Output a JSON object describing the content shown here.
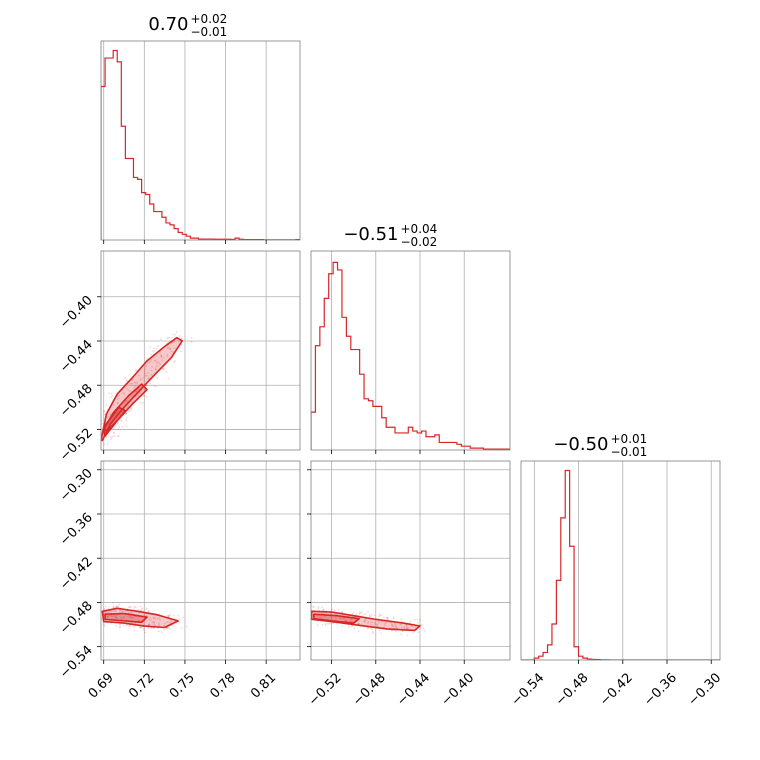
{
  "figure": {
    "type": "corner-plot",
    "accent_color": "#d62728",
    "grid": true
  },
  "chart_data": [
    {
      "type": "histogram",
      "panel": "diag-0",
      "title": {
        "main": "0.70",
        "sup": "+0.02",
        "sub": "−0.01"
      },
      "xlim": [
        0.688,
        0.835
      ],
      "ylim": [
        0,
        1.05
      ],
      "xticks": [
        0.69,
        0.72,
        0.75,
        0.78,
        0.81
      ],
      "xticklabels": [
        "0.69",
        "0.72",
        "0.75",
        "0.78",
        "0.81"
      ],
      "bin_edges": [
        0.688,
        0.691,
        0.694,
        0.697,
        0.7,
        0.703,
        0.706,
        0.709,
        0.712,
        0.715,
        0.718,
        0.721,
        0.724,
        0.727,
        0.73,
        0.733,
        0.736,
        0.739,
        0.742,
        0.745,
        0.748,
        0.751,
        0.754,
        0.757,
        0.76,
        0.763,
        0.766,
        0.769,
        0.772,
        0.775,
        0.778,
        0.781,
        0.784,
        0.787,
        0.79,
        0.793,
        0.796,
        0.799,
        0.802,
        0.805,
        0.808,
        0.811,
        0.814,
        0.817,
        0.82,
        0.823,
        0.826,
        0.829,
        0.832,
        0.835
      ],
      "counts": [
        0.81,
        0.96,
        0.96,
        1.0,
        0.94,
        0.6,
        0.43,
        0.43,
        0.33,
        0.32,
        0.25,
        0.24,
        0.19,
        0.15,
        0.15,
        0.12,
        0.09,
        0.08,
        0.06,
        0.04,
        0.03,
        0.02,
        0.01,
        0.01,
        0.005,
        0.005,
        0.005,
        0.005,
        0.004,
        0.004,
        0.004,
        0.004,
        0.003,
        0.01,
        0.004,
        0.002,
        0.002,
        0.002,
        0.002,
        0.002,
        0.001,
        0.001,
        0.001,
        0.001,
        0.001,
        0.001,
        0.001,
        0.001,
        0.002
      ]
    },
    {
      "type": "histogram",
      "panel": "diag-1",
      "title": {
        "main": "−0.51",
        "sup": "+0.04",
        "sub": "−0.02"
      },
      "xlim": [
        -0.5386,
        -0.3586
      ],
      "ylim": [
        0,
        1.05
      ],
      "xticks": [
        -0.52,
        -0.48,
        -0.44,
        -0.4
      ],
      "xticklabels": [
        "−0.52",
        "−0.48",
        "−0.44",
        "−0.40"
      ],
      "bin_edges": [
        -0.5386,
        -0.5346,
        -0.5306,
        -0.5266,
        -0.5226,
        -0.5186,
        -0.5146,
        -0.5106,
        -0.5066,
        -0.5026,
        -0.4986,
        -0.4946,
        -0.4906,
        -0.4866,
        -0.4826,
        -0.4786,
        -0.4746,
        -0.4706,
        -0.4666,
        -0.4626,
        -0.4586,
        -0.4546,
        -0.4506,
        -0.4466,
        -0.4426,
        -0.4386,
        -0.4346,
        -0.4306,
        -0.4266,
        -0.4226,
        -0.4186,
        -0.4146,
        -0.4106,
        -0.4066,
        -0.4026,
        -0.3986,
        -0.3946,
        -0.3906,
        -0.3866,
        -0.3826,
        -0.3786,
        -0.3746,
        -0.3706,
        -0.3666,
        -0.3626,
        -0.3586
      ],
      "counts": [
        0.2,
        0.55,
        0.65,
        0.8,
        0.93,
        0.99,
        0.95,
        0.7,
        0.6,
        0.53,
        0.53,
        0.4,
        0.27,
        0.26,
        0.23,
        0.23,
        0.17,
        0.12,
        0.12,
        0.09,
        0.09,
        0.09,
        0.12,
        0.1,
        0.09,
        0.1,
        0.07,
        0.07,
        0.08,
        0.04,
        0.04,
        0.04,
        0.04,
        0.03,
        0.02,
        0.02,
        0.01,
        0.01,
        0.01,
        0.005,
        0.005,
        0.005,
        0.005,
        0.005,
        0.005
      ]
    },
    {
      "type": "histogram",
      "panel": "diag-2",
      "title": {
        "main": "−0.50",
        "sup": "+0.01",
        "sub": "−0.01"
      },
      "xlim": [
        -0.5581,
        -0.2881
      ],
      "ylim": [
        0,
        1.05
      ],
      "xticks": [
        -0.54,
        -0.48,
        -0.42,
        -0.36,
        -0.3
      ],
      "xticklabels": [
        "−0.54",
        "−0.48",
        "−0.42",
        "−0.36",
        "−0.30"
      ],
      "bin_edges": [
        -0.5581,
        -0.5521,
        -0.5461,
        -0.5401,
        -0.5341,
        -0.5281,
        -0.5221,
        -0.5161,
        -0.5101,
        -0.5041,
        -0.4981,
        -0.4921,
        -0.4861,
        -0.4801,
        -0.4741,
        -0.4681,
        -0.4621,
        -0.4561,
        -0.4501,
        -0.4441,
        -0.4381,
        -0.4321,
        -0.4261,
        -0.4201,
        -0.4141,
        -0.4081,
        -0.4021,
        -0.3961,
        -0.3901,
        -0.3841,
        -0.3781,
        -0.3721,
        -0.3661,
        -0.3601,
        -0.3541,
        -0.3481,
        -0.3421,
        -0.3361,
        -0.3301,
        -0.3241,
        -0.3181,
        -0.3121,
        -0.3061,
        -0.3001,
        -0.2941,
        -0.2881
      ],
      "counts": [
        0.0,
        0.0,
        0.0,
        0.01,
        0.02,
        0.04,
        0.08,
        0.19,
        0.42,
        0.75,
        1.0,
        0.6,
        0.07,
        0.02,
        0.01,
        0.005,
        0.003,
        0.002,
        0.001,
        0.001,
        0.0,
        0.0,
        0.0,
        0.0,
        0.0,
        0.0,
        0.0,
        0.0,
        0.0,
        0.0,
        0.0,
        0.0,
        0.0,
        0.0,
        0.0,
        0.0,
        0.0,
        0.0,
        0.0,
        0.0,
        0.0,
        0.0,
        0.0,
        0.0,
        0.0
      ]
    },
    {
      "type": "scatter-contour",
      "panel": "p10",
      "xlim": [
        0.688,
        0.835
      ],
      "ylim": [
        -0.5386,
        -0.3586
      ],
      "yticks": [
        -0.4,
        -0.44,
        -0.48,
        -0.52
      ],
      "yticklabels": [
        "−0.40",
        "−0.44",
        "−0.48",
        "−0.52"
      ],
      "contours": [
        {
          "fill_opacity": 0.25,
          "points": [
            [
              0.689,
              -0.53
            ],
            [
              0.695,
              -0.515
            ],
            [
              0.705,
              -0.5
            ],
            [
              0.718,
              -0.483
            ],
            [
              0.728,
              -0.47
            ],
            [
              0.74,
              -0.455
            ],
            [
              0.748,
              -0.44
            ],
            [
              0.744,
              -0.437
            ],
            [
              0.735,
              -0.445
            ],
            [
              0.722,
              -0.458
            ],
            [
              0.712,
              -0.472
            ],
            [
              0.7,
              -0.488
            ],
            [
              0.692,
              -0.506
            ],
            [
              0.688,
              -0.53
            ]
          ]
        },
        {
          "fill_opacity": 0.35,
          "points": [
            [
              0.691,
              -0.526
            ],
            [
              0.7,
              -0.512
            ],
            [
              0.712,
              -0.496
            ],
            [
              0.722,
              -0.484
            ],
            [
              0.718,
              -0.479
            ],
            [
              0.708,
              -0.49
            ],
            [
              0.697,
              -0.505
            ],
            [
              0.69,
              -0.52
            ],
            [
              0.691,
              -0.526
            ]
          ]
        },
        {
          "fill_opacity": 0.45,
          "points": [
            [
              0.692,
              -0.522
            ],
            [
              0.7,
              -0.512
            ],
            [
              0.706,
              -0.503
            ],
            [
              0.701,
              -0.5
            ],
            [
              0.695,
              -0.51
            ],
            [
              0.69,
              -0.518
            ],
            [
              0.692,
              -0.522
            ]
          ]
        }
      ]
    },
    {
      "type": "scatter-contour",
      "panel": "p20",
      "xlim": [
        0.688,
        0.835
      ],
      "ylim": [
        -0.5581,
        -0.2881
      ],
      "yticks": [
        -0.3,
        -0.36,
        -0.42,
        -0.48,
        -0.54
      ],
      "yticklabels": [
        "−0.30",
        "−0.36",
        "−0.42",
        "−0.48",
        "−0.54"
      ],
      "xticks": [
        0.69,
        0.72,
        0.75,
        0.78,
        0.81
      ],
      "xticklabels": [
        "0.69",
        "0.72",
        "0.75",
        "0.78",
        "0.81"
      ],
      "contours": [
        {
          "fill_opacity": 0.25,
          "points": [
            [
              0.689,
              -0.492
            ],
            [
              0.7,
              -0.488
            ],
            [
              0.715,
              -0.492
            ],
            [
              0.73,
              -0.497
            ],
            [
              0.745,
              -0.505
            ],
            [
              0.735,
              -0.514
            ],
            [
              0.72,
              -0.512
            ],
            [
              0.705,
              -0.508
            ],
            [
              0.69,
              -0.506
            ],
            [
              0.689,
              -0.492
            ]
          ]
        },
        {
          "fill_opacity": 0.35,
          "points": [
            [
              0.691,
              -0.496
            ],
            [
              0.705,
              -0.495
            ],
            [
              0.722,
              -0.5
            ],
            [
              0.718,
              -0.507
            ],
            [
              0.705,
              -0.505
            ],
            [
              0.691,
              -0.503
            ],
            [
              0.691,
              -0.496
            ]
          ]
        }
      ]
    },
    {
      "type": "scatter-contour",
      "panel": "p21",
      "xlim": [
        -0.5386,
        -0.3586
      ],
      "ylim": [
        -0.5581,
        -0.2881
      ],
      "xticks": [
        -0.52,
        -0.48,
        -0.44,
        -0.4
      ],
      "xticklabels": [
        "−0.52",
        "−0.48",
        "−0.44",
        "−0.40"
      ],
      "contours": [
        {
          "fill_opacity": 0.25,
          "points": [
            [
              -0.538,
              -0.492
            ],
            [
              -0.52,
              -0.493
            ],
            [
              -0.5,
              -0.498
            ],
            [
              -0.48,
              -0.503
            ],
            [
              -0.455,
              -0.508
            ],
            [
              -0.44,
              -0.512
            ],
            [
              -0.445,
              -0.518
            ],
            [
              -0.47,
              -0.516
            ],
            [
              -0.495,
              -0.511
            ],
            [
              -0.52,
              -0.506
            ],
            [
              -0.538,
              -0.503
            ],
            [
              -0.538,
              -0.492
            ]
          ]
        },
        {
          "fill_opacity": 0.35,
          "points": [
            [
              -0.536,
              -0.496
            ],
            [
              -0.515,
              -0.498
            ],
            [
              -0.495,
              -0.502
            ],
            [
              -0.5,
              -0.508
            ],
            [
              -0.52,
              -0.505
            ],
            [
              -0.536,
              -0.502
            ],
            [
              -0.536,
              -0.496
            ]
          ]
        }
      ]
    }
  ]
}
